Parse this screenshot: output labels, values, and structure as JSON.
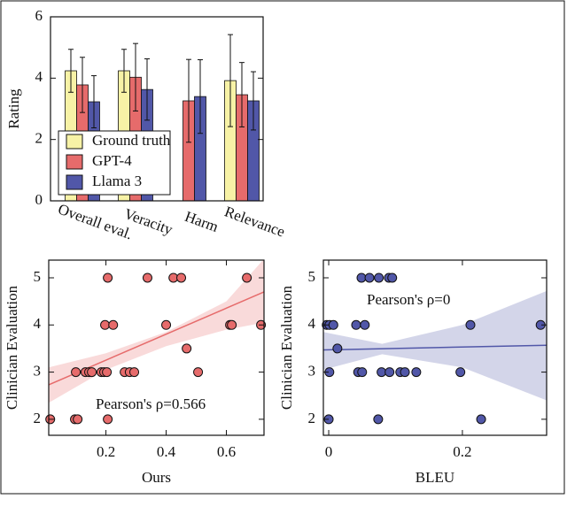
{
  "chart_data": [
    {
      "type": "bar",
      "ylabel": "Rating",
      "categories": [
        "Overall eval.",
        "Veracity",
        "Harm",
        "Relevance"
      ],
      "ylim": [
        0,
        6
      ],
      "yticks": [
        0,
        2,
        4,
        6
      ],
      "series": [
        {
          "name": "Ground truth",
          "color": "#f7f2a6",
          "values": [
            4.24,
            4.24,
            null,
            3.92
          ],
          "errors": [
            0.7,
            0.7,
            null,
            1.5
          ]
        },
        {
          "name": "GPT-4",
          "color": "#e66b6b",
          "values": [
            3.78,
            4.03,
            3.26,
            3.46
          ],
          "errors": [
            0.9,
            1.1,
            1.35,
            1.05
          ]
        },
        {
          "name": "Llama 3",
          "color": "#5157a8",
          "values": [
            3.23,
            3.63,
            3.4,
            3.26
          ],
          "errors": [
            0.85,
            1.0,
            1.2,
            0.95
          ]
        }
      ]
    },
    {
      "type": "scatter",
      "xlabel": "Ours",
      "ylabel": "Clinician Evaluation",
      "annotation": "Pearson's ρ=0.566",
      "color": "#e66b6b",
      "xlim": [
        0.01,
        0.725
      ],
      "xticks": [
        0.2,
        0.4,
        0.6
      ],
      "ylim": [
        1.66,
        5.375
      ],
      "yticks": [
        2,
        3,
        4,
        5
      ],
      "x": [
        0.206,
        0.338,
        0.424,
        0.45,
        0.668,
        0.197,
        0.224,
        0.4,
        0.612,
        0.618,
        0.715,
        0.468,
        0.1,
        0.132,
        0.144,
        0.153,
        0.185,
        0.194,
        0.203,
        0.262,
        0.279,
        0.294,
        0.506,
        0.015,
        0.097,
        0.106,
        0.206
      ],
      "values": [
        5,
        5,
        5,
        5,
        5,
        4,
        4,
        4,
        4,
        4,
        4,
        3.5,
        3,
        3,
        3,
        3,
        3,
        3,
        3,
        3,
        3,
        3,
        3,
        2,
        2,
        2,
        2
      ],
      "fit": {
        "x": [
          0.01,
          0.725
        ],
        "y": [
          2.73,
          4.7
        ]
      },
      "band": {
        "x": [
          0.01,
          0.2,
          0.4,
          0.6,
          0.725
        ],
        "lower": [
          2.35,
          3.05,
          3.55,
          3.9,
          4.05
        ],
        "upper": [
          3.1,
          3.4,
          3.85,
          4.5,
          5.4
        ]
      }
    },
    {
      "type": "scatter",
      "xlabel": "BLEU",
      "ylabel": "Clinician Evaluation",
      "annotation": "Pearson's ρ=0",
      "color": "#5157a8",
      "xlim": [
        -0.008,
        0.326
      ],
      "xticks": [
        0,
        0.2
      ],
      "ylim": [
        1.66,
        5.375
      ],
      "yticks": [
        2,
        3,
        4,
        5
      ],
      "x": [
        0.049,
        0.061,
        0.075,
        0.09,
        0.095,
        -0.003,
        0.001,
        0.007,
        0.041,
        0.054,
        0.212,
        0.317,
        0.013,
        0.001,
        0.044,
        0.05,
        0.079,
        0.091,
        0.107,
        0.114,
        0.131,
        0.197,
        0,
        0.074,
        0.228
      ],
      "values": [
        5,
        5,
        5,
        5,
        5,
        4,
        4,
        4,
        4,
        4,
        4,
        4,
        3.5,
        3,
        3,
        3,
        3,
        3,
        3,
        3,
        3,
        3,
        2,
        2,
        2
      ],
      "fit": {
        "x": [
          -0.008,
          0.326
        ],
        "y": [
          3.47,
          3.57
        ]
      },
      "band": {
        "x": [
          -0.008,
          0.08,
          0.2,
          0.326
        ],
        "lower": [
          3.05,
          3.38,
          3.1,
          2.4
        ],
        "upper": [
          3.85,
          3.6,
          4.0,
          4.72
        ]
      }
    }
  ]
}
